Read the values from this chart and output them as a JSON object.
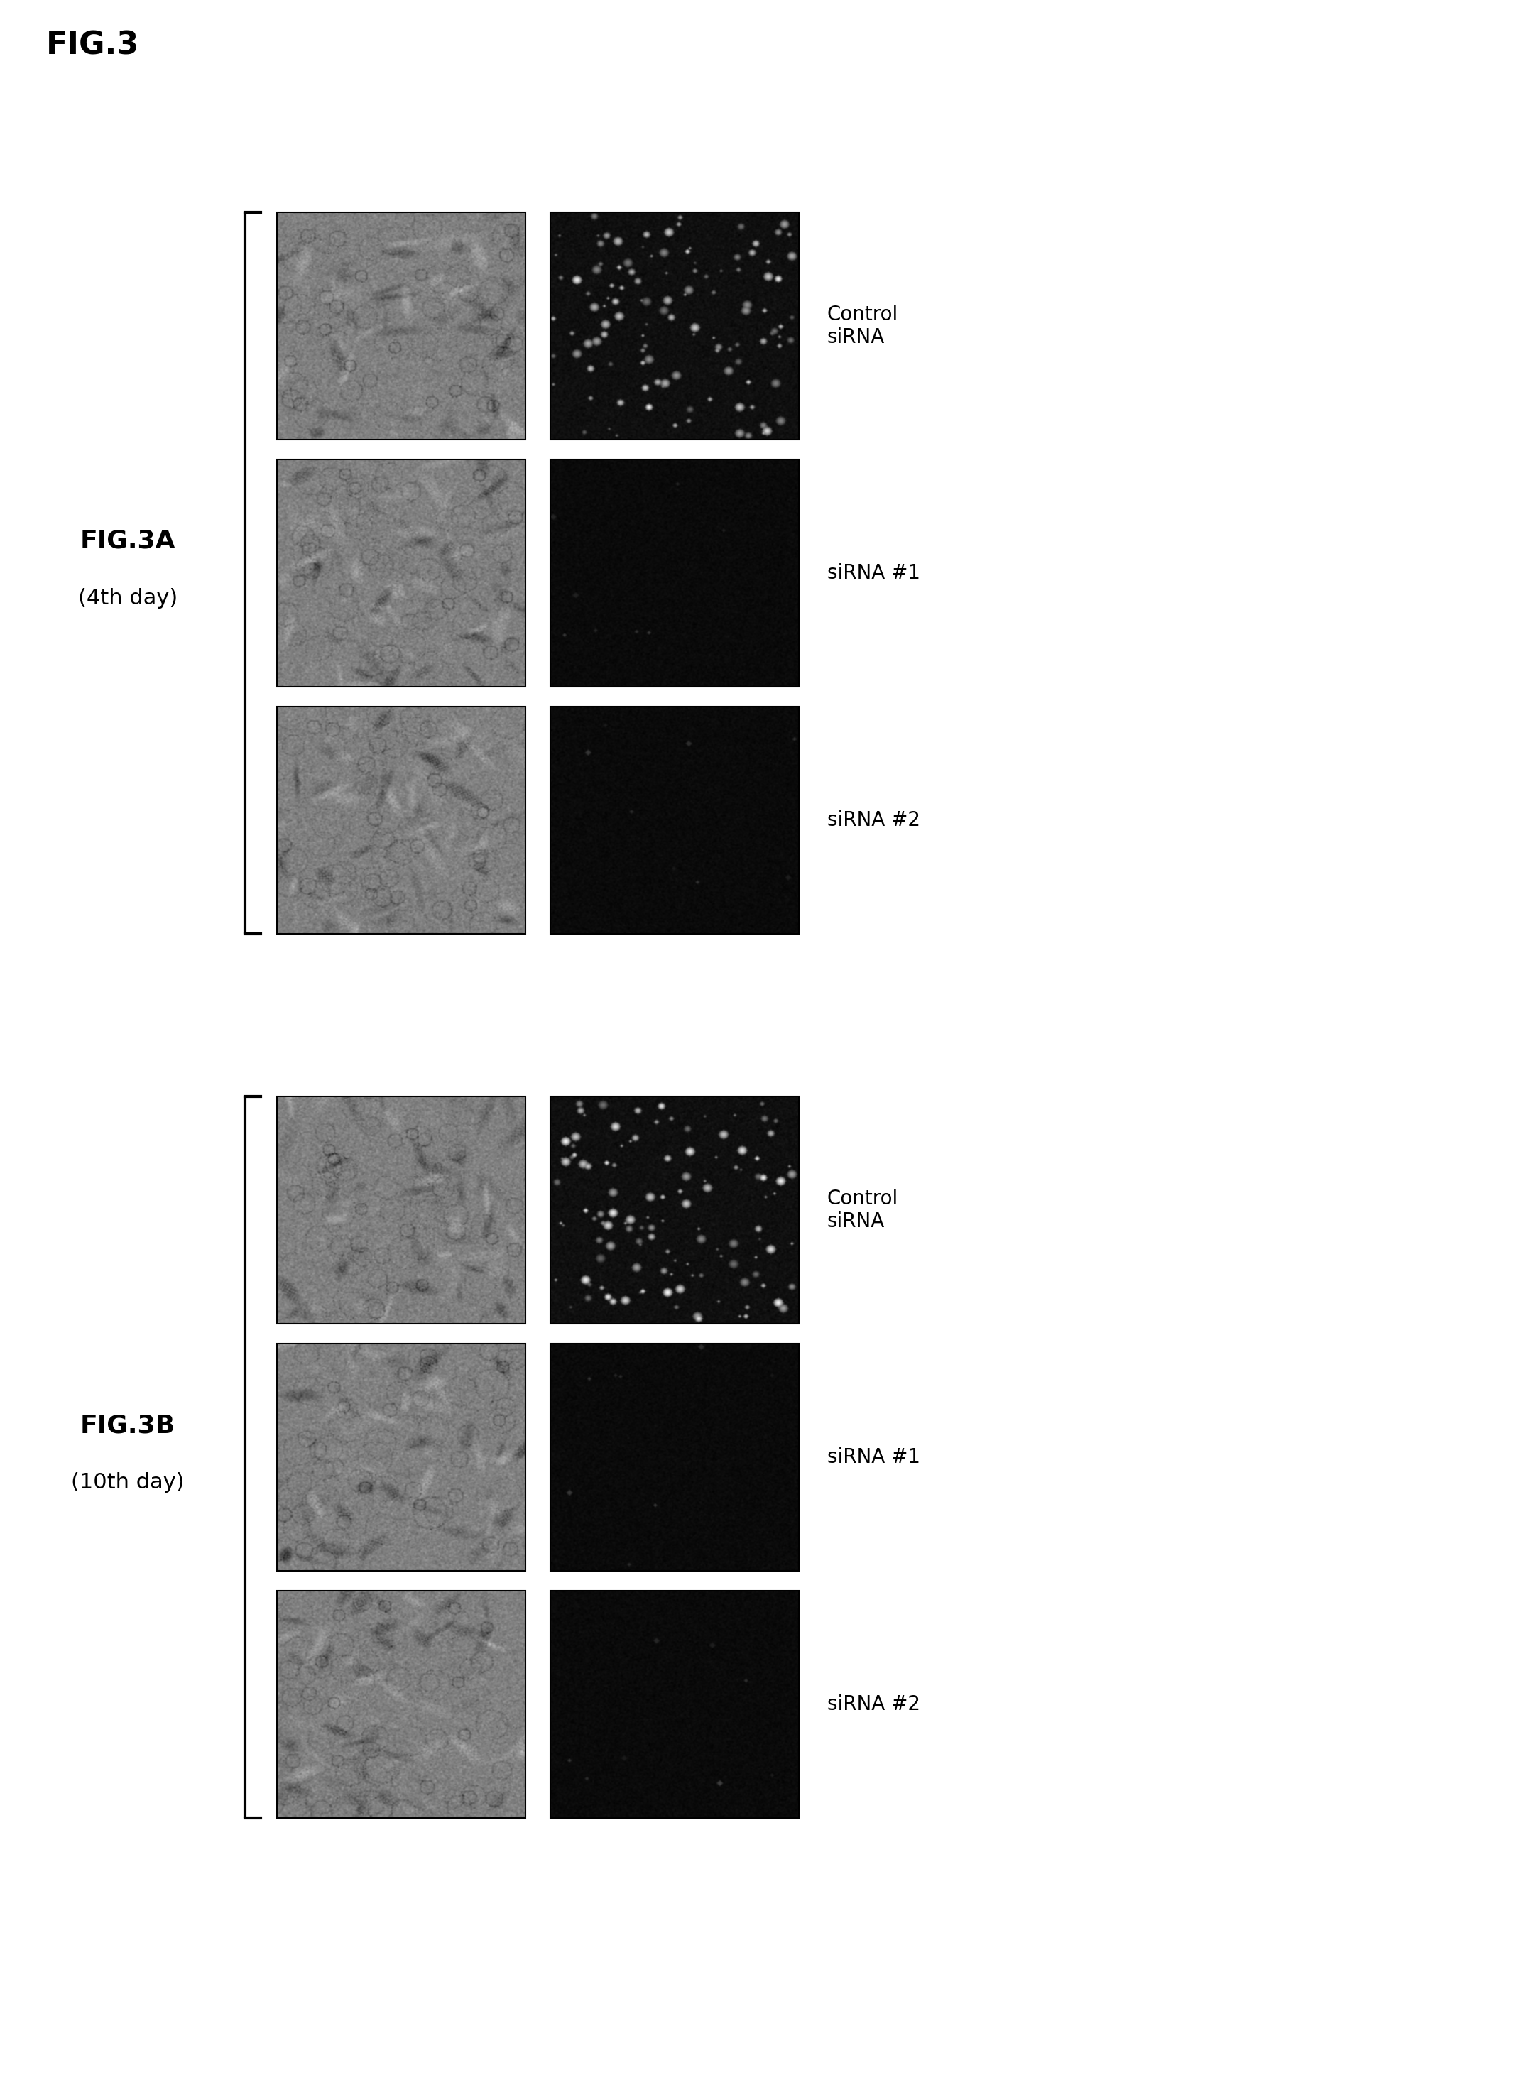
{
  "fig_title": "FIG.3",
  "fig_title_fontsize": 32,
  "panel_A_label": "FIG.3A",
  "panel_A_sublabel": "(4th day)",
  "panel_B_label": "FIG.3B",
  "panel_B_sublabel": "(10th day)",
  "panel_label_fontsize": 26,
  "panel_sublabel_fontsize": 22,
  "row_labels_A": [
    "Control\nsiRNA",
    "siRNA #1",
    "siRNA #2"
  ],
  "row_labels_B": [
    "Control\nsiRNA",
    "siRNA #1",
    "siRNA #2"
  ],
  "row_label_fontsize": 20,
  "background_color": "#ffffff",
  "image_border_color": "#000000",
  "bracket_color": "#000000",
  "bracket_linewidth": 3.0
}
